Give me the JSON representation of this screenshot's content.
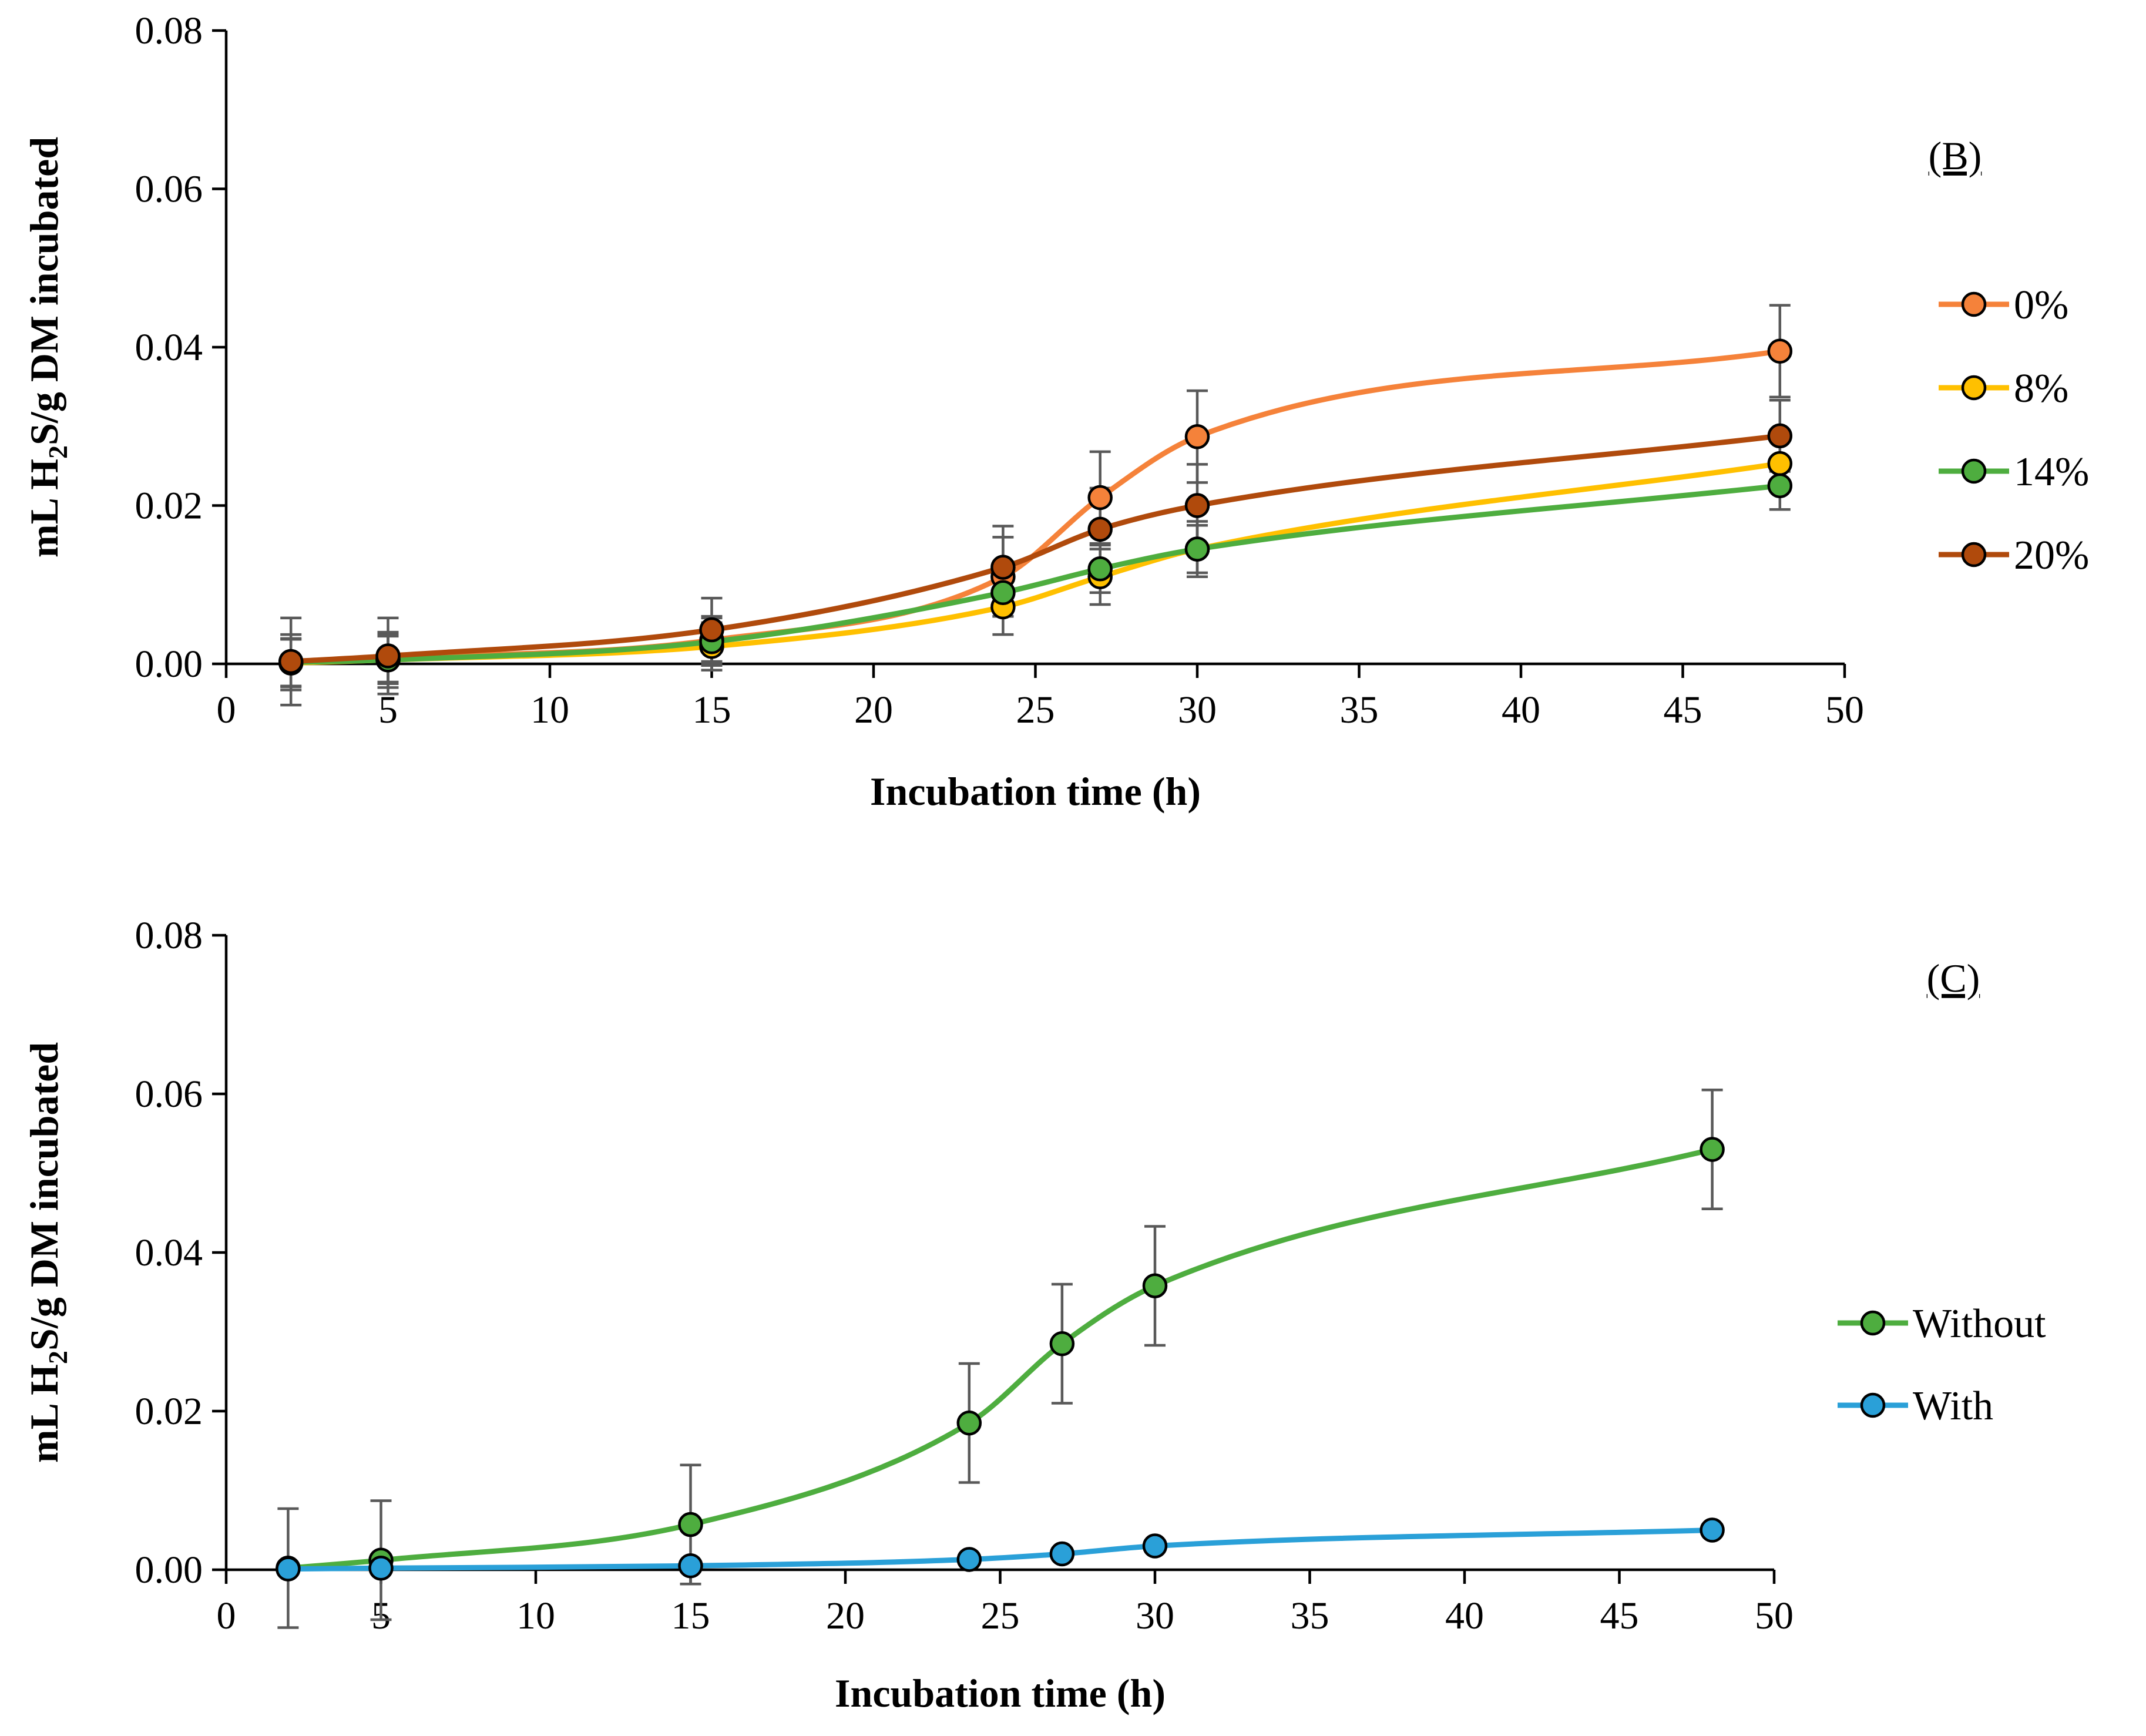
{
  "chart_data": [
    {
      "type": "line",
      "panel_label": "(B)",
      "xlabel": "Incubation time (h)",
      "ylabel": {
        "prefix": "mL H",
        "subscript": "2",
        "suffix": "S/g DM incubated"
      },
      "xlim": [
        0,
        50
      ],
      "ylim": [
        0,
        0.08
      ],
      "xticks": [
        "0",
        "5",
        "10",
        "15",
        "20",
        "25",
        "30",
        "35",
        "40",
        "45",
        "50"
      ],
      "yticks": [
        "0.00",
        "0.02",
        "0.04",
        "0.06",
        "0.08"
      ],
      "x": [
        2,
        5,
        15,
        24,
        27,
        30,
        48
      ],
      "series": [
        {
          "name": "0%",
          "color": "#F5823A",
          "values": [
            0.0002,
            0.0007,
            0.003,
            0.011,
            0.021,
            0.0287,
            0.0395
          ],
          "errors": [
            0.003,
            0.003,
            0.003,
            0.005,
            0.0058,
            0.0058,
            0.0058
          ]
        },
        {
          "name": "8%",
          "color": "#FFC000",
          "values": [
            0.0001,
            0.0005,
            0.0022,
            0.0072,
            0.011,
            0.0145,
            0.0253
          ],
          "errors": [
            0.003,
            0.003,
            0.003,
            0.0035,
            0.0035,
            0.0035,
            0.0035
          ]
        },
        {
          "name": "14%",
          "color": "#4EAD3F",
          "values": [
            0.0002,
            0.0005,
            0.0028,
            0.009,
            0.012,
            0.0145,
            0.0225
          ],
          "errors": [
            0.0035,
            0.0035,
            0.003,
            0.003,
            0.003,
            0.003,
            0.003
          ]
        },
        {
          "name": "20%",
          "color": "#B04A0C",
          "values": [
            0.0003,
            0.001,
            0.0043,
            0.0122,
            0.017,
            0.02,
            0.0288
          ],
          "errors": [
            0.0055,
            0.0048,
            0.004,
            0.0052,
            0.0052,
            0.0052,
            0.0045
          ]
        }
      ],
      "legend_position": "right"
    },
    {
      "type": "line",
      "panel_label": "(C)",
      "xlabel": "Incubation time (h)",
      "ylabel": {
        "prefix": "mL H",
        "subscript": "2",
        "suffix": "S/g DM incubated"
      },
      "xlim": [
        0,
        50
      ],
      "ylim": [
        0,
        0.08
      ],
      "xticks": [
        "0",
        "5",
        "10",
        "15",
        "20",
        "25",
        "30",
        "35",
        "40",
        "45",
        "50"
      ],
      "yticks": [
        "0.00",
        "0.02",
        "0.04",
        "0.06",
        "0.08"
      ],
      "x": [
        2,
        5,
        15,
        24,
        27,
        30,
        48
      ],
      "series": [
        {
          "name": "Without",
          "color": "#4EAD3F",
          "values": [
            0.0002,
            0.0012,
            0.0057,
            0.0185,
            0.0285,
            0.0358,
            0.053
          ],
          "errors": [
            0.0075,
            0.0075,
            0.0075,
            0.0075,
            0.0075,
            0.0075,
            0.0075
          ]
        },
        {
          "name": "With",
          "color": "#2AA0D8",
          "values": [
            0.0001,
            0.0002,
            0.0005,
            0.0013,
            0.002,
            0.003,
            0.005
          ],
          "errors": [
            0,
            0,
            0,
            0,
            0,
            0,
            0
          ]
        }
      ],
      "legend_position": "right"
    }
  ]
}
